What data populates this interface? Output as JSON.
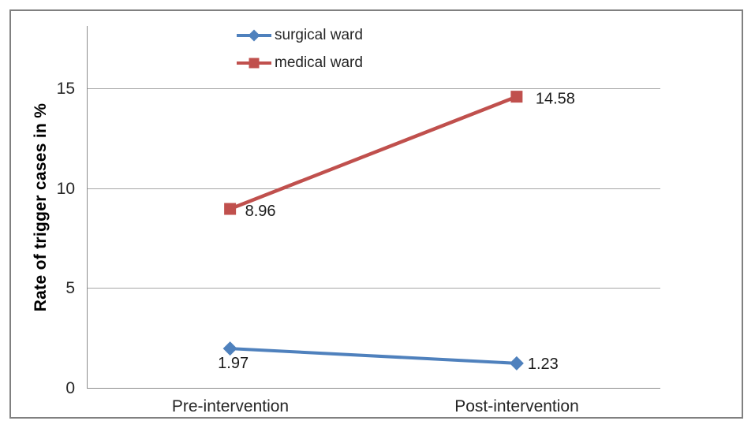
{
  "chart_data": {
    "type": "line",
    "categories": [
      "Pre-intervention",
      "Post-intervention"
    ],
    "series": [
      {
        "name": "surgical ward",
        "color": "#4F81BD",
        "marker": "diamond",
        "values": [
          1.97,
          1.23
        ],
        "data_labels": [
          "1.97",
          "1.23"
        ]
      },
      {
        "name": "medical ward",
        "color": "#C0504D",
        "marker": "square",
        "values": [
          8.96,
          14.58
        ],
        "data_labels": [
          "8.96",
          "14.58"
        ]
      }
    ],
    "title": "",
    "xlabel": "",
    "ylabel": "Rate of trigger cases in %",
    "yticks": [
      0,
      5,
      10,
      15
    ],
    "ylim": [
      0,
      18.1
    ],
    "grid": true,
    "legend_position": "top-center",
    "style": {
      "grid_color": "#A6A6A6",
      "axis_color": "#8C8C8C",
      "frame_border_color": "#808080",
      "tick_text_color": "#262626",
      "data_label_color": "#1A1A1A",
      "background": "#FFFFFF"
    }
  }
}
